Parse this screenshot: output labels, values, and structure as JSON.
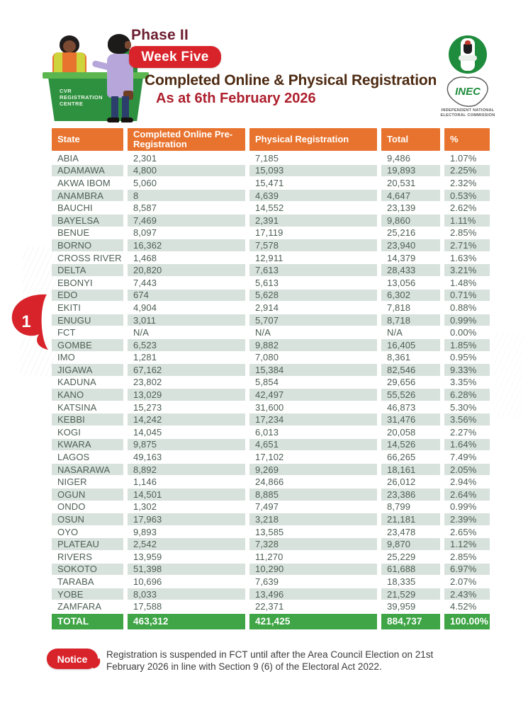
{
  "header": {
    "phase": "Phase II",
    "week_badge": "Week Five",
    "title": "Completed Online & Physical Registration",
    "subtitle": "As at 6th February 2026",
    "desk_label": "CVR REGISTRATION CENTRE"
  },
  "logo": {
    "name": "INEC",
    "caption_line1": "INDEPENDENT NATIONAL",
    "caption_line2": "ELECTORAL COMMISSION"
  },
  "page_marker": "1",
  "table": {
    "columns": [
      "State",
      "Completed Online Pre-Registration",
      "Physical Registration",
      "Total",
      "%"
    ],
    "rows": [
      [
        "ABIA",
        "2,301",
        "7,185",
        "9,486",
        "1.07%"
      ],
      [
        "ADAMAWA",
        "4,800",
        "15,093",
        "19,893",
        "2.25%"
      ],
      [
        "AKWA IBOM",
        "5,060",
        "15,471",
        "20,531",
        "2.32%"
      ],
      [
        "ANAMBRA",
        "8",
        "4,639",
        "4,647",
        "0.53%"
      ],
      [
        "BAUCHI",
        "8,587",
        "14,552",
        "23,139",
        "2.62%"
      ],
      [
        "BAYELSA",
        "7,469",
        "2,391",
        "9,860",
        "1.11%"
      ],
      [
        "BENUE",
        "8,097",
        "17,119",
        "25,216",
        "2.85%"
      ],
      [
        "BORNO",
        "16,362",
        "7,578",
        "23,940",
        "2.71%"
      ],
      [
        "CROSS RIVER",
        "1,468",
        "12,911",
        "14,379",
        "1.63%"
      ],
      [
        "DELTA",
        "20,820",
        "7,613",
        "28,433",
        "3.21%"
      ],
      [
        "EBONYI",
        "7,443",
        "5,613",
        "13,056",
        "1.48%"
      ],
      [
        "EDO",
        "674",
        "5,628",
        "6,302",
        "0.71%"
      ],
      [
        "EKITI",
        "4,904",
        "2,914",
        "7,818",
        "0.88%"
      ],
      [
        "ENUGU",
        "3,011",
        "5,707",
        "8,718",
        "0.99%"
      ],
      [
        "FCT",
        "N/A",
        "N/A",
        "N/A",
        "0.00%"
      ],
      [
        "GOMBE",
        "6,523",
        "9,882",
        "16,405",
        "1.85%"
      ],
      [
        "IMO",
        "1,281",
        "7,080",
        "8,361",
        "0.95%"
      ],
      [
        "JIGAWA",
        "67,162",
        "15,384",
        "82,546",
        "9.33%"
      ],
      [
        "KADUNA",
        "23,802",
        "5,854",
        "29,656",
        "3.35%"
      ],
      [
        "KANO",
        "13,029",
        "42,497",
        "55,526",
        "6.28%"
      ],
      [
        "KATSINA",
        "15,273",
        "31,600",
        "46,873",
        "5.30%"
      ],
      [
        "KEBBI",
        "14,242",
        "17,234",
        "31,476",
        "3.56%"
      ],
      [
        "KOGI",
        "14,045",
        "6,013",
        "20,058",
        "2.27%"
      ],
      [
        "KWARA",
        "9,875",
        "4,651",
        "14,526",
        "1.64%"
      ],
      [
        "LAGOS",
        "49,163",
        "17,102",
        "66,265",
        "7.49%"
      ],
      [
        "NASARAWA",
        "8,892",
        "9,269",
        "18,161",
        "2.05%"
      ],
      [
        "NIGER",
        "1,146",
        "24,866",
        "26,012",
        "2.94%"
      ],
      [
        "OGUN",
        "14,501",
        "8,885",
        "23,386",
        "2.64%"
      ],
      [
        "ONDO",
        "1,302",
        "7,497",
        "8,799",
        "0.99%"
      ],
      [
        "OSUN",
        "17,963",
        "3,218",
        "21,181",
        "2.39%"
      ],
      [
        "OYO",
        "9,893",
        "13,585",
        "23,478",
        "2.65%"
      ],
      [
        "PLATEAU",
        "2,542",
        "7,328",
        "9,870",
        "1.12%"
      ],
      [
        "RIVERS",
        "13,959",
        "11,270",
        "25,229",
        "2.85%"
      ],
      [
        "SOKOTO",
        "51,398",
        "10,290",
        "61,688",
        "6.97%"
      ],
      [
        "TARABA",
        "10,696",
        "7,639",
        "18,335",
        "2.07%"
      ],
      [
        "YOBE",
        "8,033",
        "13,496",
        "21,529",
        "2.43%"
      ],
      [
        "ZAMFARA",
        "17,588",
        "22,371",
        "39,959",
        "4.52%"
      ]
    ],
    "total_row": [
      "TOTAL",
      "463,312",
      "421,425",
      "884,737",
      "100.00%"
    ]
  },
  "notice": {
    "badge": "Notice",
    "text": "Registration is suspended in FCT until after the Area Council Election on 21st February 2026 in line with Section 9 (6) of the Electoral Act 2022."
  },
  "colors": {
    "accent_red": "#D8232A",
    "header_orange": "#E8732E",
    "row_tint": "#D8E2DC",
    "total_green": "#3FA546",
    "title_brown": "#4D2A12",
    "maroon": "#6D1F31",
    "table_text": "#4D5F55",
    "logo_green": "#1E8C3C"
  }
}
